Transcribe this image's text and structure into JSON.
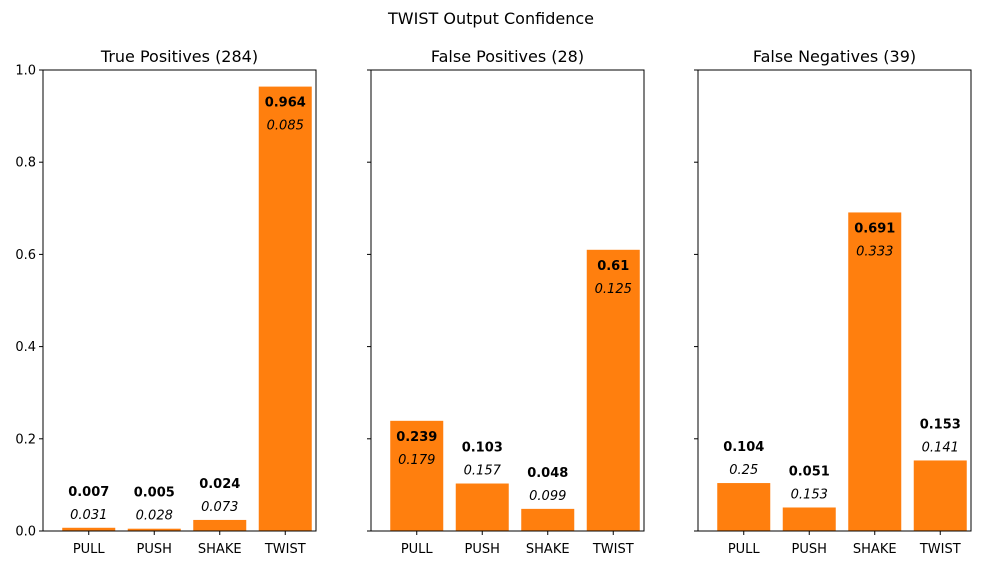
{
  "suptitle": "TWIST Output Confidence",
  "chart_data": [
    {
      "type": "bar",
      "title": "True Positives (284)",
      "categories": [
        "PULL",
        "PUSH",
        "SHAKE",
        "TWIST"
      ],
      "values": [
        0.007,
        0.005,
        0.024,
        0.964
      ],
      "value_labels": [
        "0.007",
        "0.005",
        "0.024",
        "0.964"
      ],
      "std_labels": [
        "0.031",
        "0.028",
        "0.073",
        "0.085"
      ],
      "ylim": [
        0,
        1.0
      ],
      "yticks": [
        "0.0",
        "0.2",
        "0.4",
        "0.6",
        "0.8",
        "1.0"
      ],
      "grid": false,
      "bar_color": "#ff7f0e"
    },
    {
      "type": "bar",
      "title": "False Positives (28)",
      "categories": [
        "PULL",
        "PUSH",
        "SHAKE",
        "TWIST"
      ],
      "values": [
        0.239,
        0.103,
        0.048,
        0.61
      ],
      "value_labels": [
        "0.239",
        "0.103",
        "0.048",
        "0.61"
      ],
      "std_labels": [
        "0.179",
        "0.157",
        "0.099",
        "0.125"
      ],
      "ylim": [
        0,
        1.0
      ],
      "grid": false,
      "bar_color": "#ff7f0e"
    },
    {
      "type": "bar",
      "title": "False Negatives (39)",
      "categories": [
        "PULL",
        "PUSH",
        "SHAKE",
        "TWIST"
      ],
      "values": [
        0.104,
        0.051,
        0.691,
        0.153
      ],
      "value_labels": [
        "0.104",
        "0.051",
        "0.691",
        "0.153"
      ],
      "std_labels": [
        "0.25",
        "0.153",
        "0.333",
        "0.141"
      ],
      "ylim": [
        0,
        1.0
      ],
      "grid": false,
      "bar_color": "#ff7f0e"
    }
  ]
}
